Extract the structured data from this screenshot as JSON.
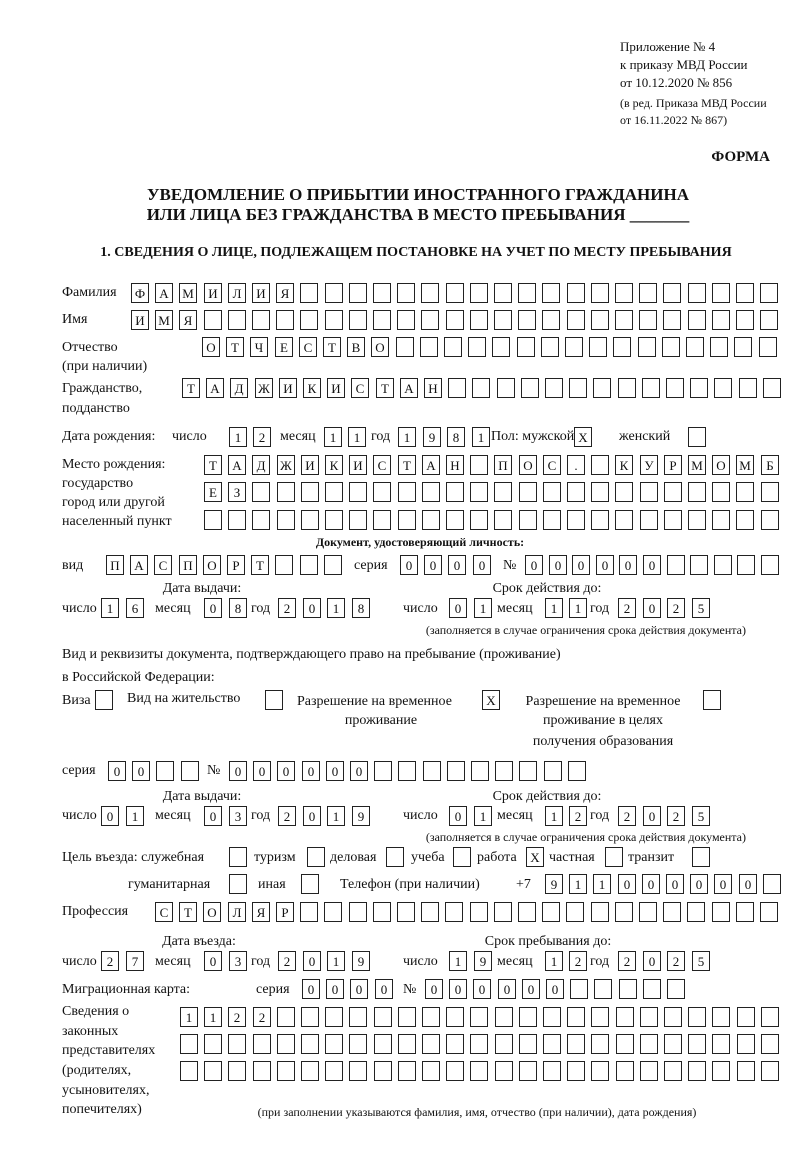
{
  "header": {
    "annex": "Приложение № 4",
    "order": "к приказу МВД России",
    "order_date": "от 10.12.2020 № 856",
    "edition": "(в ред. Приказа МВД России",
    "edition_date": "от 16.11.2022 № 867)",
    "form_label": "ФОРМА"
  },
  "title": {
    "line1": "УВЕДОМЛЕНИЕ О ПРИБЫТИИ ИНОСТРАННОГО ГРАЖДАНИНА",
    "line2": "ИЛИ ЛИЦА БЕЗ ГРАЖДАНСТВА В МЕСТО ПРЕБЫВАНИЯ _______"
  },
  "section1": "1. СВЕДЕНИЯ О ЛИЦЕ, ПОДЛЕЖАЩЕМ ПОСТАНОВКЕ НА УЧЕТ ПО МЕСТУ ПРЕБЫВАНИЯ",
  "common": {
    "day": "число",
    "month": "месяц",
    "year": "год",
    "series": "серия",
    "number": "№"
  },
  "labels": {
    "surname": "Фамилия",
    "name": "Имя",
    "patronymic": "Отчество",
    "patronymic_note": "(при наличии)",
    "citizenship": "Гражданство,",
    "citizenship2": "подданство",
    "birth_date": "Дата рождения:",
    "sex": "Пол: мужской",
    "female": "женский",
    "birth_place": "Место рождения:",
    "birth_place2": "государство",
    "birth_place3": "город или другой",
    "birth_place4": "населенный пункт",
    "id_doc": "Документ, удостоверяющий личность:",
    "doc_type": "вид",
    "issue_date": "Дата выдачи:",
    "valid_until": "Срок действия до:",
    "validity_note": "(заполняется в случае ограничения срока действия документа)",
    "stay_doc1": "Вид и реквизиты документа, подтверждающего право на пребывание (проживание)",
    "stay_doc2": "в Российской Федерации:",
    "visa": "Виза",
    "residence": "Вид на жительство",
    "trp1": "Разрешение на временное",
    "trp2": "проживание",
    "trp_edu1": "Разрешение на временное",
    "trp_edu2": "проживание в целях",
    "trp_edu3": "получения образования",
    "purpose": "Цель въезда: служебная",
    "tourism": "туризм",
    "business": "деловая",
    "study": "учеба",
    "work": "работа",
    "private": "частная",
    "transit": "транзит",
    "humanitarian": "гуманитарная",
    "other": "иная",
    "phone": "Телефон (при наличии)",
    "phone_prefix": "+7",
    "profession": "Профессия",
    "entry_date": "Дата въезда:",
    "stay_until": "Срок пребывания до:",
    "migration_card": "Миграционная карта:",
    "reps1": "Сведения о",
    "reps2": "законных",
    "reps3": "представителях",
    "reps4": "(родителях,",
    "reps5": "усыновителях,",
    "reps6": "попечителях)",
    "reps_note": "(при заполнении указываются фамилия, имя, отчество (при наличии), дата рождения)"
  },
  "values": {
    "surname": "ФАМИЛИЯ",
    "name": "ИМЯ",
    "patronymic": "ОТЧЕСТВО",
    "citizenship": "ТАДЖИКИСТАН",
    "birth_day": "12",
    "birth_month": "11",
    "birth_year": "1981",
    "sex_male": "X",
    "sex_female": "",
    "birth_place_1": "ТАДЖИКИСТАН ПОС. КУРМОМБ",
    "birth_place_2": "ЕЗ",
    "birth_place_3": "",
    "doc_type": "ПАСПОРТ",
    "doc_series": "0000",
    "doc_number": "000000",
    "doc_issue_day": "16",
    "doc_issue_month": "08",
    "doc_issue_year": "2018",
    "doc_valid_day": "01",
    "doc_valid_month": "11",
    "doc_valid_year": "2025",
    "stay_visa": "",
    "stay_residence": "",
    "stay_trp": "X",
    "stay_trp_edu": "",
    "stay_series": "00",
    "stay_number": "000000",
    "stay_issue_day": "01",
    "stay_issue_month": "03",
    "stay_issue_year": "2019",
    "stay_valid_day": "01",
    "stay_valid_month": "12",
    "stay_valid_year": "2025",
    "purpose_service": "",
    "purpose_tourism": "",
    "purpose_business": "",
    "purpose_study": "",
    "purpose_work": "X",
    "purpose_private": "",
    "purpose_transit": "",
    "purpose_humanitarian": "",
    "purpose_other": "",
    "phone": "911000000",
    "profession": "СТОЛЯР",
    "entry_day": "27",
    "entry_month": "03",
    "entry_year": "2019",
    "stay_until_day": "19",
    "stay_until_month": "12",
    "stay_until_year": "2025",
    "mc_series": "0000",
    "mc_number": "000000",
    "reps_1": "1122",
    "reps_2": "",
    "reps_3": ""
  }
}
